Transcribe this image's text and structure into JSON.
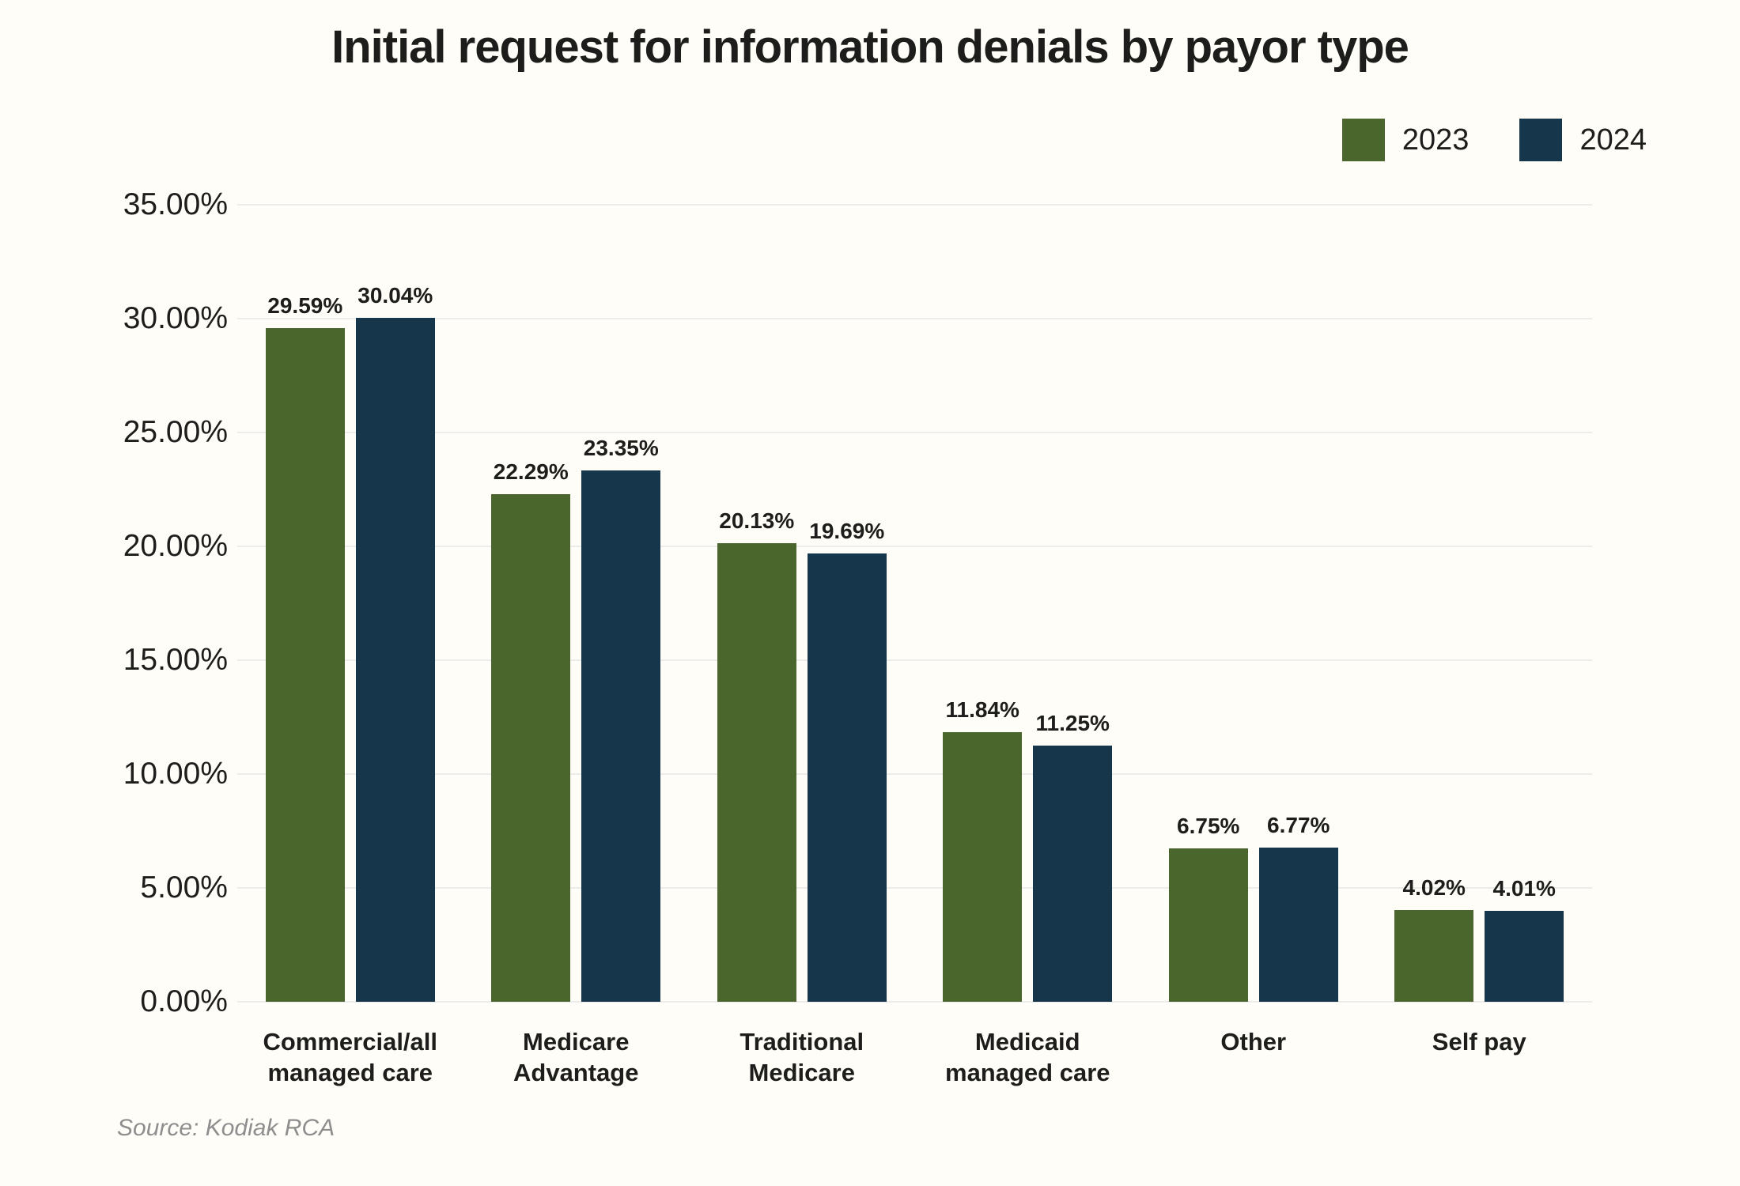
{
  "title": "Initial request for information denials by payor type",
  "source": "Source: Kodiak RCA",
  "colors": {
    "background": "#fffdf8",
    "series_2023": "#4b662c",
    "series_2024": "#16364b",
    "gridline": "#ececec",
    "text": "#1d1d1b",
    "source_text": "#8e8e8e"
  },
  "legend": {
    "items": [
      {
        "label": "2023",
        "color": "#4b662c"
      },
      {
        "label": "2024",
        "color": "#16364b"
      }
    ]
  },
  "chart_data": {
    "type": "bar",
    "title": "Initial request for information denials by payor type",
    "categories": [
      "Commercial/all\nmanaged care",
      "Medicare\nAdvantage",
      "Traditional\nMedicare",
      "Medicaid\nmanaged care",
      "Other",
      "Self pay"
    ],
    "series": [
      {
        "name": "2023",
        "color": "#4b662c",
        "values": [
          29.59,
          22.29,
          20.13,
          11.84,
          6.75,
          4.02
        ],
        "labels": [
          "29.59%",
          "22.29%",
          "20.13%",
          "11.84%",
          "6.75%",
          "4.02%"
        ]
      },
      {
        "name": "2024",
        "color": "#16364b",
        "values": [
          30.04,
          23.35,
          19.69,
          11.25,
          6.77,
          4.01
        ],
        "labels": [
          "30.04%",
          "23.35%",
          "19.69%",
          "11.25%",
          "6.77%",
          "4.01%"
        ]
      }
    ],
    "xlabel": "",
    "ylabel": "",
    "ylim": [
      0,
      35
    ],
    "y_tick_step": 5,
    "y_tick_labels": [
      "35.00%",
      "30.00%",
      "25.00%",
      "20.00%",
      "15.00%",
      "10.00%",
      "5.00%",
      "0.00%"
    ],
    "grid": true,
    "legend_position": "top-right"
  }
}
